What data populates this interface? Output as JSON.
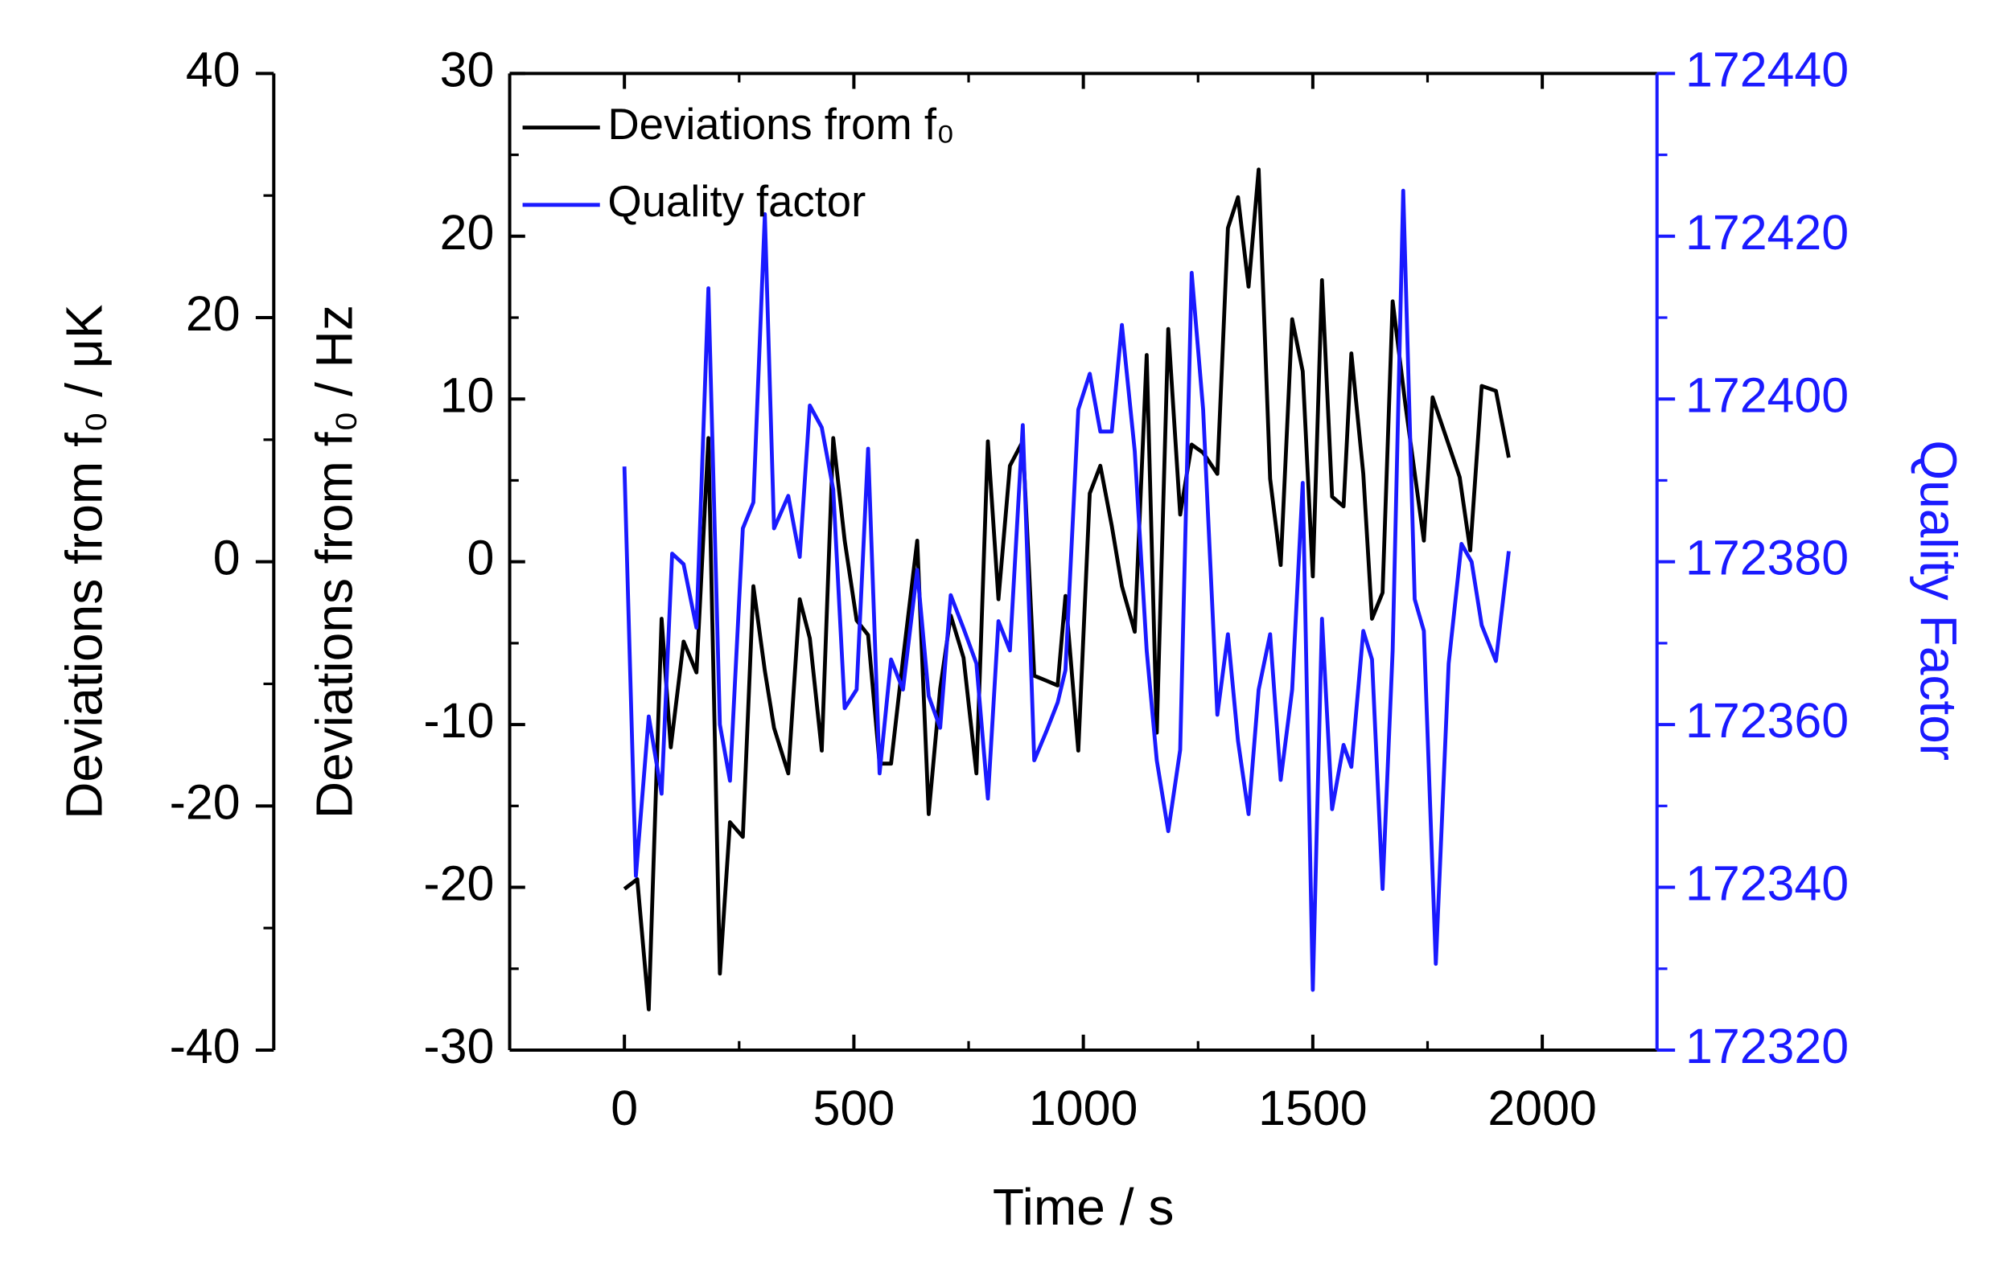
{
  "chart_data": {
    "type": "line",
    "x_label": "Time / s",
    "y_label": "Deviations from f₀ / Hz",
    "y2_label": "Quality Factor",
    "y3_label": "Deviations from f₀ / μK",
    "xlim": [
      -250,
      2250
    ],
    "xticks": [
      0,
      500,
      1000,
      1500,
      2000
    ],
    "ylim": [
      -30,
      30
    ],
    "yticks": [
      -30,
      -20,
      -10,
      0,
      10,
      20,
      30
    ],
    "y2lim": [
      172320,
      172440
    ],
    "y2ticks": [
      172320,
      172340,
      172360,
      172380,
      172400,
      172420,
      172440
    ],
    "y3lim": [
      -40,
      40
    ],
    "y3ticks": [
      -40,
      -20,
      0,
      20,
      40
    ],
    "y2_color": "#1a1aff",
    "legend": "upper left",
    "series": [
      {
        "name": "Deviations from f₀",
        "color": "#000000",
        "x": [
          0,
          28,
          53,
          81,
          101,
          129,
          157,
          183,
          208,
          230,
          258,
          281,
          306,
          326,
          357,
          382,
          404,
          430,
          455,
          480,
          506,
          531,
          556,
          581,
          607,
          638,
          663,
          688,
          711,
          739,
          767,
          792,
          815,
          840,
          868,
          893,
          919,
          944,
          961,
          989,
          1014,
          1037,
          1062,
          1084,
          1112,
          1138,
          1160,
          1185,
          1211,
          1236,
          1261,
          1292,
          1315,
          1337,
          1360,
          1382,
          1407,
          1430,
          1455,
          1478,
          1500,
          1520,
          1542,
          1567,
          1584,
          1610,
          1629,
          1652,
          1674,
          1702,
          1742,
          1761,
          1820,
          1843,
          1868,
          1899,
          1927
        ],
        "values": [
          -20.1,
          -19.5,
          -27.5,
          -3.5,
          -11.4,
          -4.9,
          -6.8,
          7.6,
          -25.3,
          -16,
          -16.9,
          -1.5,
          -6.7,
          -10.2,
          -13,
          -2.3,
          -4.7,
          -11.6,
          7.6,
          1.3,
          -3.6,
          -4.5,
          -12.4,
          -12.4,
          -6,
          1.3,
          -15.5,
          -7.8,
          -3.3,
          -5.9,
          -13,
          7.4,
          -2.3,
          5.9,
          7.4,
          -7,
          -7.3,
          -7.6,
          -2.1,
          -11.6,
          4.2,
          5.9,
          2.2,
          -1.5,
          -4.3,
          12.7,
          -10.5,
          14.3,
          2.9,
          7.2,
          6.7,
          5.4,
          20.5,
          22.4,
          16.9,
          24.1,
          5.1,
          -0.2,
          14.9,
          11.7,
          -0.9,
          17.3,
          4,
          3.4,
          12.8,
          5.4,
          -3.5,
          -1.9,
          16,
          9.6,
          1.3,
          10.1,
          5.2,
          0.7,
          10.8,
          10.5,
          6.4
        ]
      },
      {
        "name": "Quality factor",
        "color": "#1a1aff",
        "axis": "y2",
        "x": [
          0,
          25,
          53,
          81,
          104,
          129,
          157,
          183,
          208,
          230,
          258,
          281,
          306,
          326,
          357,
          382,
          404,
          430,
          455,
          480,
          506,
          531,
          556,
          581,
          607,
          638,
          663,
          688,
          711,
          739,
          767,
          792,
          815,
          840,
          868,
          893,
          919,
          944,
          961,
          989,
          1014,
          1037,
          1062,
          1084,
          1112,
          1138,
          1160,
          1185,
          1211,
          1236,
          1261,
          1292,
          1315,
          1337,
          1360,
          1382,
          1407,
          1430,
          1455,
          1478,
          1500,
          1520,
          1542,
          1567,
          1584,
          1610,
          1629,
          1652,
          1674,
          1697,
          1722,
          1742,
          1768,
          1796,
          1824,
          1846,
          1868,
          1899,
          1927
        ],
        "values": [
          172391.7,
          172341.4,
          172361,
          172351.5,
          172381,
          172379.7,
          172371.9,
          172413.6,
          172360,
          172353.1,
          172384.1,
          172387.3,
          172422.7,
          172384.1,
          172388.1,
          172380.6,
          172399.2,
          172396.5,
          172388.9,
          172362,
          172364.3,
          172393.9,
          172354,
          172368,
          172364.3,
          172379,
          172363.5,
          172359.6,
          172375.9,
          172371.8,
          172367.5,
          172350.9,
          172372.7,
          172369.1,
          172396.8,
          172355.6,
          172359.1,
          172362.7,
          172366.7,
          172398.7,
          172403.1,
          172396,
          172396,
          172409.1,
          172393.6,
          172369.1,
          172355.6,
          172346.9,
          172356.9,
          172415.5,
          172398.7,
          172361.2,
          172371.1,
          172358,
          172349,
          172364.3,
          172371.1,
          172353.2,
          172364.3,
          172389.7,
          172327.4,
          172373,
          172349.6,
          172357.5,
          172354.8,
          172371.5,
          172368,
          172339.8,
          172369.1,
          172425.6,
          172375.4,
          172371.5,
          172330.6,
          172367.5,
          172382.2,
          172380,
          172372.2,
          172367.8,
          172381.3
        ]
      }
    ]
  }
}
